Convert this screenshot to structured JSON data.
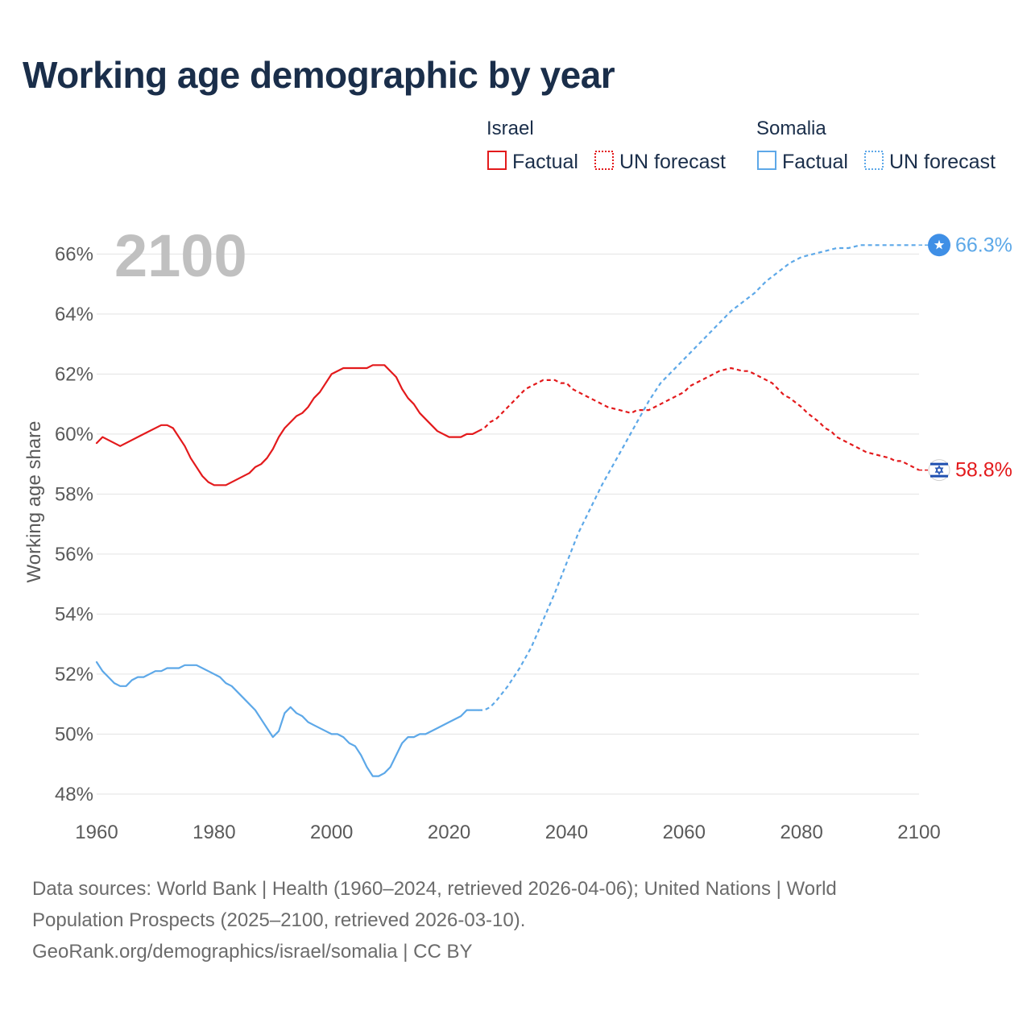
{
  "title": "Working age demographic by year",
  "chart_data": {
    "type": "line",
    "year_badge": "2100",
    "ylabel": "Working age share",
    "xlim": [
      1960,
      2100
    ],
    "ylim": [
      47.3,
      67.3
    ],
    "x_ticks": [
      "1960",
      "1980",
      "2000",
      "2020",
      "2040",
      "2060",
      "2080",
      "2100"
    ],
    "x_tick_values": [
      1960,
      1980,
      2000,
      2020,
      2040,
      2060,
      2080,
      2100
    ],
    "y_ticks": [
      "48%",
      "50%",
      "52%",
      "54%",
      "56%",
      "58%",
      "60%",
      "62%",
      "64%",
      "66%"
    ],
    "y_tick_values": [
      48,
      50,
      52,
      54,
      56,
      58,
      60,
      62,
      64,
      66
    ],
    "forecast_start_year": 2025,
    "series": [
      {
        "name": "Israel",
        "color": "#e31a1c",
        "legend_group_label": "Israel",
        "legend_factual_label": "Factual",
        "legend_forecast_label": "UN forecast",
        "end_label": "58.8%",
        "end_flag_icon": "israel-flag-icon",
        "points": [
          [
            1960,
            59.7
          ],
          [
            1961,
            59.9
          ],
          [
            1964,
            59.6
          ],
          [
            1968,
            60.0
          ],
          [
            1971,
            60.3
          ],
          [
            1972,
            60.3
          ],
          [
            1973,
            60.2
          ],
          [
            1975,
            59.6
          ],
          [
            1976,
            59.2
          ],
          [
            1978,
            58.6
          ],
          [
            1979,
            58.4
          ],
          [
            1980,
            58.3
          ],
          [
            1982,
            58.3
          ],
          [
            1984,
            58.5
          ],
          [
            1986,
            58.7
          ],
          [
            1987,
            58.9
          ],
          [
            1988,
            59.0
          ],
          [
            1989,
            59.2
          ],
          [
            1990,
            59.5
          ],
          [
            1991,
            59.9
          ],
          [
            1992,
            60.2
          ],
          [
            1994,
            60.6
          ],
          [
            1995,
            60.7
          ],
          [
            1996,
            60.9
          ],
          [
            1997,
            61.2
          ],
          [
            1998,
            61.4
          ],
          [
            2000,
            62.0
          ],
          [
            2002,
            62.2
          ],
          [
            2006,
            62.2
          ],
          [
            2007,
            62.3
          ],
          [
            2009,
            62.3
          ],
          [
            2011,
            61.9
          ],
          [
            2012,
            61.5
          ],
          [
            2013,
            61.2
          ],
          [
            2014,
            61.0
          ],
          [
            2015,
            60.7
          ],
          [
            2016,
            60.5
          ],
          [
            2018,
            60.1
          ],
          [
            2020,
            59.9
          ],
          [
            2022,
            59.9
          ],
          [
            2023,
            60.0
          ],
          [
            2024,
            60.0
          ],
          [
            2025,
            60.1
          ],
          [
            2026,
            60.2
          ],
          [
            2027,
            60.4
          ],
          [
            2028,
            60.5
          ],
          [
            2030,
            60.9
          ],
          [
            2032,
            61.3
          ],
          [
            2033,
            61.5
          ],
          [
            2035,
            61.7
          ],
          [
            2036,
            61.8
          ],
          [
            2038,
            61.8
          ],
          [
            2039,
            61.7
          ],
          [
            2040,
            61.7
          ],
          [
            2041,
            61.5
          ],
          [
            2043,
            61.3
          ],
          [
            2045,
            61.1
          ],
          [
            2047,
            60.9
          ],
          [
            2049,
            60.8
          ],
          [
            2051,
            60.7
          ],
          [
            2052,
            60.8
          ],
          [
            2054,
            60.8
          ],
          [
            2055,
            60.9
          ],
          [
            2056,
            61.0
          ],
          [
            2058,
            61.2
          ],
          [
            2060,
            61.4
          ],
          [
            2061,
            61.6
          ],
          [
            2063,
            61.8
          ],
          [
            2065,
            62.0
          ],
          [
            2066,
            62.1
          ],
          [
            2068,
            62.2
          ],
          [
            2070,
            62.1
          ],
          [
            2071,
            62.1
          ],
          [
            2073,
            61.9
          ],
          [
            2075,
            61.7
          ],
          [
            2077,
            61.3
          ],
          [
            2078,
            61.2
          ],
          [
            2080,
            60.9
          ],
          [
            2081,
            60.7
          ],
          [
            2083,
            60.4
          ],
          [
            2084,
            60.2
          ],
          [
            2085,
            60.1
          ],
          [
            2086,
            59.9
          ],
          [
            2088,
            59.7
          ],
          [
            2090,
            59.5
          ],
          [
            2091,
            59.4
          ],
          [
            2093,
            59.3
          ],
          [
            2095,
            59.2
          ],
          [
            2096,
            59.1
          ],
          [
            2097,
            59.1
          ],
          [
            2098,
            59.0
          ],
          [
            2099,
            58.9
          ],
          [
            2100,
            58.8
          ]
        ]
      },
      {
        "name": "Somalia",
        "color": "#5da8e8",
        "legend_group_label": "Somalia",
        "legend_factual_label": "Factual",
        "legend_forecast_label": "UN forecast",
        "end_label": "66.3%",
        "end_flag_icon": "somalia-flag-icon",
        "points": [
          [
            1960,
            52.4
          ],
          [
            1961,
            52.1
          ],
          [
            1962,
            51.9
          ],
          [
            1963,
            51.7
          ],
          [
            1964,
            51.6
          ],
          [
            1965,
            51.6
          ],
          [
            1966,
            51.8
          ],
          [
            1967,
            51.9
          ],
          [
            1968,
            51.9
          ],
          [
            1970,
            52.1
          ],
          [
            1971,
            52.1
          ],
          [
            1972,
            52.2
          ],
          [
            1974,
            52.2
          ],
          [
            1975,
            52.3
          ],
          [
            1977,
            52.3
          ],
          [
            1979,
            52.1
          ],
          [
            1981,
            51.9
          ],
          [
            1982,
            51.7
          ],
          [
            1983,
            51.6
          ],
          [
            1985,
            51.2
          ],
          [
            1987,
            50.8
          ],
          [
            1988,
            50.5
          ],
          [
            1989,
            50.2
          ],
          [
            1990,
            49.9
          ],
          [
            1991,
            50.1
          ],
          [
            1992,
            50.7
          ],
          [
            1993,
            50.9
          ],
          [
            1994,
            50.7
          ],
          [
            1995,
            50.6
          ],
          [
            1996,
            50.4
          ],
          [
            1997,
            50.3
          ],
          [
            1999,
            50.1
          ],
          [
            2000,
            50.0
          ],
          [
            2001,
            50.0
          ],
          [
            2002,
            49.9
          ],
          [
            2003,
            49.7
          ],
          [
            2004,
            49.6
          ],
          [
            2005,
            49.3
          ],
          [
            2006,
            48.9
          ],
          [
            2007,
            48.6
          ],
          [
            2008,
            48.6
          ],
          [
            2009,
            48.7
          ],
          [
            2010,
            48.9
          ],
          [
            2011,
            49.3
          ],
          [
            2012,
            49.7
          ],
          [
            2013,
            49.9
          ],
          [
            2014,
            49.9
          ],
          [
            2015,
            50.0
          ],
          [
            2016,
            50.0
          ],
          [
            2018,
            50.2
          ],
          [
            2020,
            50.4
          ],
          [
            2022,
            50.6
          ],
          [
            2023,
            50.8
          ],
          [
            2025,
            50.8
          ],
          [
            2026,
            50.8
          ],
          [
            2027,
            50.9
          ],
          [
            2028,
            51.1
          ],
          [
            2030,
            51.6
          ],
          [
            2032,
            52.2
          ],
          [
            2034,
            52.9
          ],
          [
            2036,
            53.8
          ],
          [
            2038,
            54.7
          ],
          [
            2040,
            55.7
          ],
          [
            2042,
            56.7
          ],
          [
            2044,
            57.5
          ],
          [
            2046,
            58.3
          ],
          [
            2048,
            59.0
          ],
          [
            2050,
            59.7
          ],
          [
            2052,
            60.4
          ],
          [
            2054,
            61.1
          ],
          [
            2056,
            61.7
          ],
          [
            2058,
            62.1
          ],
          [
            2060,
            62.5
          ],
          [
            2062,
            62.9
          ],
          [
            2064,
            63.3
          ],
          [
            2066,
            63.7
          ],
          [
            2068,
            64.1
          ],
          [
            2070,
            64.4
          ],
          [
            2072,
            64.7
          ],
          [
            2074,
            65.1
          ],
          [
            2076,
            65.4
          ],
          [
            2078,
            65.7
          ],
          [
            2080,
            65.9
          ],
          [
            2082,
            66.0
          ],
          [
            2084,
            66.1
          ],
          [
            2086,
            66.2
          ],
          [
            2088,
            66.2
          ],
          [
            2090,
            66.3
          ],
          [
            2100,
            66.3
          ]
        ]
      }
    ]
  },
  "sources": {
    "line1": "Data sources: World Bank | Health (1960–2024, retrieved 2026-04-06); United Nations | World",
    "line2": "Population Prospects (2025–2100, retrieved 2026-03-10).",
    "line3": "GeoRank.org/demographics/israel/somalia | CC BY"
  }
}
